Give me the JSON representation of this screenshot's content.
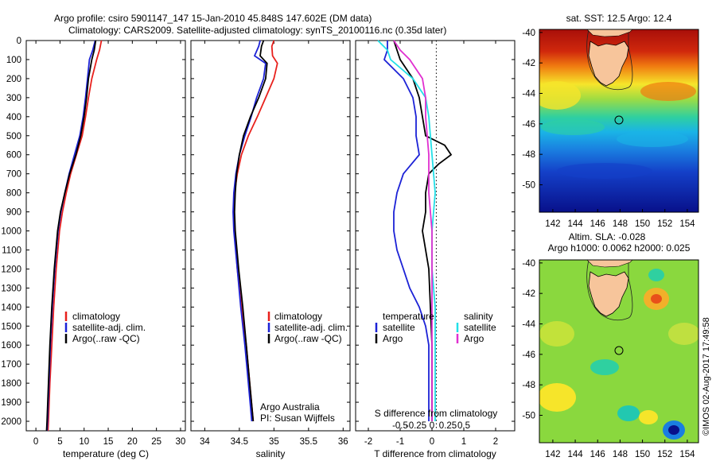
{
  "header": {
    "title_line1": "Argo profile: csiro 5901147_147 15-Jan-2010 45.848S 147.602E (DM data)",
    "title_line2": "Climatology: CARS2009. Satellite-adjusted climatology: synTS_20100116.nc (0.35d later)"
  },
  "colors": {
    "climatology": "#e8201c",
    "satellite": "#1c22d6",
    "argo": "#000000",
    "salinity_satellite": "#22e0e8",
    "salinity_argo": "#e030d0"
  },
  "legend_profiles": {
    "climatology": "climatology",
    "satellite": "satellite-adj. clim.",
    "argo": "Argo(..raw -QC)"
  },
  "diff_legend": {
    "temperature_title": "temperature",
    "salinity_title": "salinity",
    "satellite": "satellite",
    "argo": "Argo"
  },
  "notes": {
    "argo_australia": "Argo Australia",
    "pi": "PI: Susan Wijffels",
    "imos_stamp": "©IMOS 02-Aug-2017 17:49:58"
  },
  "map_top": {
    "title": "sat. SST: 12.5 Argo: 12.4",
    "xticks": [
      "142",
      "144",
      "146",
      "148",
      "150",
      "152",
      "154"
    ],
    "yticks": [
      "-40",
      "-42",
      "-44",
      "-46",
      "-48",
      "-50"
    ],
    "profile_marker": {
      "lon": 147.6,
      "lat": -45.85
    }
  },
  "map_bottom": {
    "title_line1": "Altim. SLA: -0.028",
    "title_line2": "Argo h1000: 0.0062 h2000: 0.025",
    "xticks": [
      "142",
      "144",
      "146",
      "148",
      "150",
      "152",
      "154"
    ],
    "yticks": [
      "-40",
      "-42",
      "-44",
      "-46",
      "-48",
      "-50"
    ],
    "profile_marker": {
      "lon": 147.6,
      "lat": -45.85
    }
  },
  "chart_data": [
    {
      "type": "line",
      "name": "temperature profile",
      "xlabel": "temperature (deg C)",
      "ylabel": "",
      "xlim": [
        -2,
        31
      ],
      "ylim": [
        2050,
        0
      ],
      "xticks": [
        0,
        5,
        10,
        15,
        20,
        25,
        30
      ],
      "yticks": [
        0,
        100,
        200,
        300,
        400,
        500,
        600,
        700,
        800,
        900,
        1000,
        1100,
        1200,
        1300,
        1400,
        1500,
        1600,
        1700,
        1800,
        1900,
        2000
      ],
      "series": [
        {
          "name": "climatology",
          "y": [
            0,
            50,
            100,
            200,
            300,
            400,
            500,
            600,
            700,
            800,
            900,
            1000,
            1200,
            1400,
            1600,
            1800,
            2000,
            2050
          ],
          "x": [
            13.6,
            13.2,
            12.6,
            11.6,
            10.9,
            10.3,
            9.6,
            8.4,
            7.2,
            6.3,
            5.5,
            4.9,
            4.2,
            3.7,
            3.3,
            2.9,
            2.6,
            2.5
          ]
        },
        {
          "name": "satellite-adj. clim.",
          "y": [
            0,
            50,
            100,
            200,
            300,
            400,
            500,
            600,
            700,
            800,
            900,
            1000,
            1200,
            1400,
            1600,
            1800,
            2000,
            2050
          ],
          "x": [
            12.3,
            11.8,
            11.1,
            10.7,
            10.3,
            9.8,
            9.1,
            8.0,
            6.9,
            6.0,
            5.2,
            4.6,
            3.9,
            3.4,
            3.0,
            2.7,
            2.4,
            2.3
          ]
        },
        {
          "name": "Argo(..raw -QC)",
          "y": [
            0,
            50,
            100,
            200,
            300,
            400,
            500,
            600,
            700,
            800,
            900,
            1000,
            1200,
            1400,
            1600,
            1800,
            2000,
            2050
          ],
          "x": [
            12.4,
            12.1,
            11.6,
            10.9,
            10.5,
            10.0,
            9.3,
            8.3,
            7.0,
            6.0,
            5.1,
            4.5,
            3.8,
            3.3,
            2.9,
            2.6,
            2.3,
            2.2
          ]
        }
      ]
    },
    {
      "type": "line",
      "name": "salinity profile",
      "xlabel": "salinity",
      "ylabel": "",
      "xlim": [
        33.8,
        36.1
      ],
      "ylim": [
        2050,
        0
      ],
      "xticks": [
        34,
        34.5,
        35,
        35.5,
        36
      ],
      "series": [
        {
          "name": "climatology",
          "y": [
            0,
            30,
            80,
            120,
            200,
            300,
            400,
            500,
            600,
            700,
            800,
            900,
            1000,
            1200,
            1400,
            1600,
            1800,
            2000
          ],
          "x": [
            35.0,
            34.97,
            34.98,
            35.05,
            35.0,
            34.88,
            34.76,
            34.63,
            34.53,
            34.47,
            34.43,
            34.42,
            34.43,
            34.47,
            34.53,
            34.6,
            34.65,
            34.7
          ]
        },
        {
          "name": "satellite-adj. clim.",
          "y": [
            0,
            30,
            80,
            120,
            200,
            300,
            400,
            500,
            600,
            700,
            800,
            900,
            1000,
            1200,
            1400,
            1600,
            1800,
            2000
          ],
          "x": [
            34.8,
            34.78,
            34.72,
            34.88,
            34.85,
            34.75,
            34.67,
            34.58,
            34.5,
            34.45,
            34.42,
            34.41,
            34.42,
            34.47,
            34.52,
            34.58,
            34.63,
            34.68
          ]
        },
        {
          "name": "Argo(..raw -QC)",
          "y": [
            0,
            30,
            80,
            120,
            200,
            300,
            400,
            500,
            600,
            700,
            800,
            900,
            1000,
            1200,
            1400,
            1600,
            1800,
            2000
          ],
          "x": [
            34.85,
            34.82,
            34.8,
            34.9,
            34.88,
            34.78,
            34.66,
            34.56,
            34.5,
            34.46,
            34.44,
            34.43,
            34.44,
            34.49,
            34.55,
            34.6,
            34.65,
            34.7
          ]
        }
      ]
    },
    {
      "type": "line",
      "name": "difference from climatology",
      "xlabel": "T difference from climatology",
      "xlabel_top": "S difference from climatology",
      "xlim": [
        -2.4,
        2.6
      ],
      "ylim": [
        2050,
        0
      ],
      "xticks": [
        -2,
        -1,
        0,
        1,
        2
      ],
      "xticks_top": [
        "-0.5",
        "-0.25",
        "0",
        "0.25",
        "0.5"
      ],
      "series": [
        {
          "name": "temperature satellite",
          "y": [
            0,
            50,
            100,
            200,
            300,
            400,
            500,
            600,
            700,
            800,
            900,
            1000,
            1100,
            1200,
            1300,
            1400,
            1500,
            1600,
            1800,
            2000
          ],
          "x": [
            -1.4,
            -1.4,
            -1.5,
            -0.9,
            -0.6,
            -0.5,
            -0.5,
            -0.4,
            -0.9,
            -1.1,
            -1.2,
            -1.2,
            -1.1,
            -0.9,
            -0.7,
            -0.4,
            -0.2,
            -0.1,
            -0.1,
            -0.1
          ]
        },
        {
          "name": "temperature Argo",
          "y": [
            0,
            50,
            100,
            200,
            300,
            400,
            500,
            550,
            600,
            650,
            700,
            800,
            900,
            1000,
            1200,
            1400,
            1600,
            1800,
            2000
          ],
          "x": [
            -1.2,
            -1.1,
            -1.0,
            -0.6,
            -0.4,
            -0.3,
            -0.2,
            0.4,
            0.6,
            0.2,
            -0.1,
            -0.2,
            -0.2,
            -0.3,
            -0.1,
            -0.05,
            0.0,
            0.0,
            0.0
          ]
        },
        {
          "name": "salinity satellite",
          "y": [
            0,
            50,
            100,
            200,
            300,
            400,
            600,
            800,
            1000,
            1200,
            1400,
            1600,
            1800,
            2000
          ],
          "x": [
            -0.85,
            -0.7,
            -0.65,
            -0.3,
            -0.1,
            -0.05,
            0.0,
            0.05,
            0.0,
            0.0,
            0.05,
            0.05,
            0.05,
            0.05
          ]
        },
        {
          "name": "salinity Argo",
          "y": [
            0,
            50,
            100,
            200,
            300,
            400,
            600,
            800,
            1000,
            1200,
            1400,
            1600,
            1800,
            2000
          ],
          "x": [
            -0.6,
            -0.5,
            -0.35,
            -0.15,
            -0.1,
            -0.1,
            -0.05,
            -0.05,
            0.0,
            0.0,
            0.0,
            0.0,
            0.0,
            0.0
          ]
        }
      ]
    },
    {
      "type": "heatmap",
      "name": "sat. SST map",
      "xlim": [
        140.8,
        155.0
      ],
      "ylim": [
        -51.8,
        -39.8
      ],
      "xticks": [
        142,
        144,
        146,
        148,
        150,
        152,
        154
      ],
      "yticks": [
        -40,
        -42,
        -44,
        -46,
        -48,
        -50
      ]
    },
    {
      "type": "heatmap",
      "name": "Altim. SLA map",
      "xlim": [
        140.8,
        155.0
      ],
      "ylim": [
        -51.8,
        -39.8
      ],
      "xticks": [
        142,
        144,
        146,
        148,
        150,
        152,
        154
      ],
      "yticks": [
        -40,
        -42,
        -44,
        -46,
        -48,
        -50
      ]
    }
  ]
}
